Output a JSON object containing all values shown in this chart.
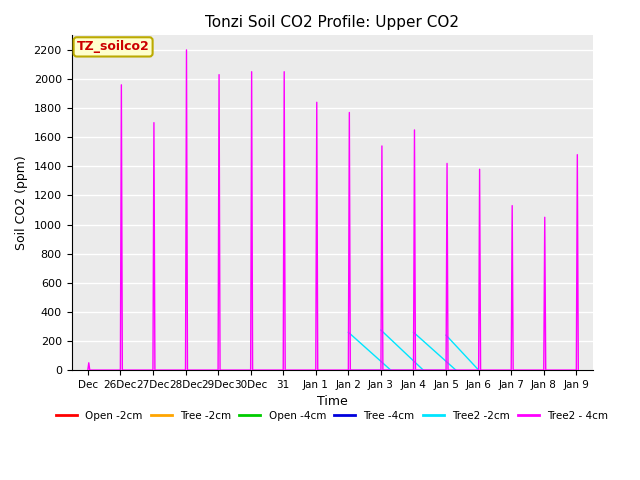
{
  "title": "Tonzi Soil CO2 Profile: Upper CO2",
  "xlabel": "Time",
  "ylabel": "Soil CO2 (ppm)",
  "annotation": "TZ_soilco2",
  "ylim": [
    0,
    2300
  ],
  "xlim": [
    -0.5,
    15.5
  ],
  "background_color": "#ebebeb",
  "fig_width": 6.4,
  "fig_height": 4.8,
  "tree2_4cm_color": "#ff00ff",
  "tree2_2cm_color": "#00e5ff",
  "tree_4cm_color": "#0000dd",
  "open_2cm_color": "#ff0000",
  "tree_2cm_color": "#ffa500",
  "open_4cm_color": "#00cc00",
  "tree2_4cm_x": [
    0,
    0.03,
    0.06,
    1,
    1.03,
    1.06,
    2,
    2.03,
    2.06,
    3,
    3.03,
    3.06,
    4,
    4.03,
    4.06,
    5,
    5.03,
    5.06,
    6,
    6.03,
    6.06,
    7,
    7.03,
    7.06,
    8,
    8.03,
    8.06,
    9,
    9.03,
    9.06,
    10,
    10.03,
    10.06,
    11,
    11.03,
    11.06,
    12,
    12.03,
    12.06,
    13,
    13.03,
    13.06,
    14,
    14.03,
    14.06,
    15,
    15.03,
    15.06
  ],
  "tree2_4cm_y": [
    0,
    50,
    0,
    0,
    1960,
    0,
    0,
    1700,
    0,
    0,
    2200,
    0,
    0,
    2030,
    0,
    0,
    2050,
    0,
    0,
    2050,
    0,
    0,
    1840,
    0,
    0,
    1770,
    0,
    0,
    1540,
    0,
    0,
    1650,
    0,
    0,
    1420,
    0,
    0,
    1380,
    0,
    0,
    1130,
    0,
    0,
    1050,
    0,
    0,
    1480,
    0
  ],
  "tree2_2cm_x": [
    8.0,
    9.0,
    9.0,
    10.0,
    10.0,
    11.0,
    11.0,
    12.0
  ],
  "tree2_2cm_y": [
    260,
    0,
    275,
    0,
    260,
    0,
    240,
    0
  ],
  "tree_4cm_x": [
    8,
    8.5,
    9,
    9.5,
    10,
    10.5,
    11
  ],
  "tree_4cm_y": [
    0,
    0,
    0,
    0,
    0,
    0,
    0
  ],
  "xtick_positions": [
    0,
    1,
    2,
    3,
    4,
    5,
    6,
    7,
    8,
    9,
    10,
    11,
    12,
    13,
    14,
    15
  ],
  "xtick_labels": [
    "Dec",
    "26Dec",
    "27Dec",
    "28Dec",
    "29Dec",
    "30Dec",
    "31",
    "Jan 1",
    "Jan 2",
    "Jan 3",
    "Jan 4",
    "Jan 5",
    "Jan 6",
    "Jan 7",
    "Jan 8",
    "Jan 9"
  ]
}
